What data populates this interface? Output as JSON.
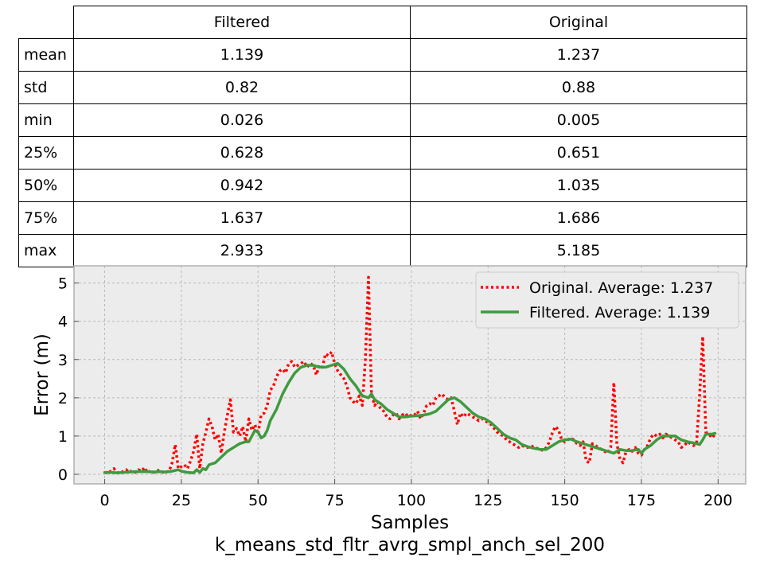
{
  "table": {
    "columns": [
      "Filtered",
      "Original"
    ],
    "rows": [
      {
        "label": "mean",
        "values": [
          "1.139",
          "1.237"
        ]
      },
      {
        "label": "std",
        "values": [
          "0.82",
          "0.88"
        ]
      },
      {
        "label": "min",
        "values": [
          "0.026",
          "0.005"
        ]
      },
      {
        "label": "25%",
        "values": [
          "0.628",
          "0.651"
        ]
      },
      {
        "label": "50%",
        "values": [
          "0.942",
          "1.035"
        ]
      },
      {
        "label": "75%",
        "values": [
          "1.637",
          "1.686"
        ]
      },
      {
        "label": "max",
        "values": [
          "2.933",
          "5.185"
        ]
      }
    ]
  },
  "chart_data": {
    "type": "line",
    "title": "k_means_std_fltr_avrg_smpl_anch_sel_200",
    "xlabel": "Samples",
    "ylabel": "Error (m)",
    "xlim": [
      -10,
      209
    ],
    "ylim": [
      -0.25,
      5.45
    ],
    "xticks": [
      0,
      25,
      50,
      75,
      100,
      125,
      150,
      175,
      200
    ],
    "yticks": [
      0,
      1,
      2,
      3,
      4,
      5
    ],
    "grid": true,
    "legend_position": "top-right",
    "background": "#ececec",
    "series": [
      {
        "name": "Original. Average: 1.237",
        "color": "#ff0000",
        "style": "dotted",
        "points": [
          [
            0,
            0.05
          ],
          [
            1,
            0.03
          ],
          [
            2,
            0.08
          ],
          [
            3,
            0.15
          ],
          [
            4,
            0.06
          ],
          [
            5,
            0.02
          ],
          [
            6,
            0.08
          ],
          [
            7,
            0.12
          ],
          [
            8,
            0.05
          ],
          [
            9,
            0.1
          ],
          [
            10,
            0.05
          ],
          [
            11,
            0.12
          ],
          [
            12,
            0.08
          ],
          [
            13,
            0.18
          ],
          [
            14,
            0.04
          ],
          [
            15,
            0.1
          ],
          [
            16,
            0.05
          ],
          [
            17,
            0.08
          ],
          [
            18,
            0.12
          ],
          [
            19,
            0.05
          ],
          [
            20,
            0.06
          ],
          [
            21,
            0.08
          ],
          [
            22,
            0.3
          ],
          [
            23,
            0.78
          ],
          [
            24,
            0.15
          ],
          [
            25,
            0.2
          ],
          [
            26,
            0.25
          ],
          [
            27,
            0.15
          ],
          [
            28,
            0.35
          ],
          [
            29,
            0.6
          ],
          [
            30,
            1.05
          ],
          [
            31,
            0.15
          ],
          [
            32,
            0.8
          ],
          [
            33,
            1.1
          ],
          [
            34,
            1.45
          ],
          [
            35,
            1.25
          ],
          [
            36,
            0.9
          ],
          [
            37,
            1.05
          ],
          [
            38,
            0.55
          ],
          [
            39,
            1.1
          ],
          [
            40,
            1.55
          ],
          [
            41,
            1.95
          ],
          [
            42,
            1.1
          ],
          [
            43,
            1.2
          ],
          [
            44,
            1.0
          ],
          [
            45,
            1.25
          ],
          [
            46,
            0.85
          ],
          [
            47,
            1.45
          ],
          [
            48,
            1.15
          ],
          [
            49,
            1.3
          ],
          [
            50,
            1.05
          ],
          [
            51,
            1.55
          ],
          [
            52,
            1.6
          ],
          [
            53,
            1.8
          ],
          [
            54,
            2.2
          ],
          [
            55,
            2.3
          ],
          [
            56,
            2.55
          ],
          [
            57,
            2.7
          ],
          [
            58,
            2.75
          ],
          [
            59,
            2.65
          ],
          [
            60,
            2.9
          ],
          [
            61,
            2.95
          ],
          [
            62,
            2.8
          ],
          [
            63,
            2.85
          ],
          [
            64,
            2.9
          ],
          [
            65,
            2.95
          ],
          [
            66,
            2.8
          ],
          [
            67,
            2.9
          ],
          [
            68,
            2.85
          ],
          [
            69,
            2.6
          ],
          [
            70,
            2.85
          ],
          [
            71,
            2.8
          ],
          [
            72,
            3.15
          ],
          [
            73,
            3.1
          ],
          [
            74,
            3.2
          ],
          [
            75,
            2.9
          ],
          [
            76,
            2.7
          ],
          [
            77,
            2.6
          ],
          [
            78,
            2.5
          ],
          [
            79,
            2.3
          ],
          [
            80,
            2.0
          ],
          [
            81,
            1.9
          ],
          [
            82,
            1.85
          ],
          [
            83,
            2.05
          ],
          [
            84,
            1.8
          ],
          [
            85,
            3.0
          ],
          [
            86,
            5.15
          ],
          [
            87,
            2.1
          ],
          [
            88,
            1.8
          ],
          [
            89,
            1.9
          ],
          [
            90,
            1.7
          ],
          [
            91,
            1.65
          ],
          [
            92,
            1.5
          ],
          [
            93,
            1.45
          ],
          [
            94,
            1.55
          ],
          [
            95,
            1.6
          ],
          [
            96,
            1.45
          ],
          [
            97,
            1.55
          ],
          [
            98,
            1.6
          ],
          [
            99,
            1.5
          ],
          [
            100,
            1.55
          ],
          [
            101,
            1.55
          ],
          [
            102,
            1.65
          ],
          [
            103,
            1.45
          ],
          [
            104,
            1.6
          ],
          [
            105,
            1.8
          ],
          [
            106,
            1.85
          ],
          [
            107,
            1.8
          ],
          [
            108,
            2.0
          ],
          [
            109,
            2.05
          ],
          [
            110,
            2.1
          ],
          [
            111,
            2.0
          ],
          [
            112,
            1.95
          ],
          [
            113,
            2.0
          ],
          [
            114,
            1.65
          ],
          [
            115,
            1.3
          ],
          [
            116,
            1.6
          ],
          [
            117,
            1.5
          ],
          [
            118,
            1.6
          ],
          [
            119,
            1.55
          ],
          [
            120,
            1.5
          ],
          [
            121,
            1.45
          ],
          [
            122,
            1.4
          ],
          [
            123,
            1.45
          ],
          [
            124,
            1.4
          ],
          [
            125,
            1.35
          ],
          [
            126,
            1.3
          ],
          [
            127,
            1.2
          ],
          [
            128,
            1.1
          ],
          [
            129,
            1.05
          ],
          [
            130,
            1.0
          ],
          [
            131,
            0.9
          ],
          [
            132,
            0.85
          ],
          [
            133,
            0.8
          ],
          [
            134,
            0.75
          ],
          [
            135,
            0.7
          ],
          [
            136,
            0.75
          ],
          [
            137,
            0.72
          ],
          [
            138,
            0.7
          ],
          [
            139,
            0.75
          ],
          [
            140,
            0.7
          ],
          [
            141,
            0.68
          ],
          [
            142,
            0.65
          ],
          [
            143,
            0.62
          ],
          [
            144,
            0.7
          ],
          [
            145,
            0.85
          ],
          [
            146,
            1.1
          ],
          [
            147,
            1.25
          ],
          [
            148,
            1.15
          ],
          [
            149,
            0.9
          ],
          [
            150,
            0.85
          ],
          [
            151,
            0.9
          ],
          [
            152,
            0.95
          ],
          [
            153,
            0.9
          ],
          [
            154,
            0.8
          ],
          [
            155,
            0.75
          ],
          [
            156,
            0.85
          ],
          [
            157,
            0.35
          ],
          [
            158,
            0.3
          ],
          [
            159,
            0.8
          ],
          [
            160,
            0.75
          ],
          [
            161,
            0.7
          ],
          [
            162,
            0.65
          ],
          [
            163,
            0.6
          ],
          [
            164,
            0.55
          ],
          [
            165,
            0.7
          ],
          [
            166,
            2.4
          ],
          [
            167,
            0.8
          ],
          [
            168,
            0.4
          ],
          [
            169,
            0.3
          ],
          [
            170,
            0.6
          ],
          [
            171,
            0.65
          ],
          [
            172,
            0.6
          ],
          [
            173,
            0.7
          ],
          [
            174,
            0.55
          ],
          [
            175,
            0.5
          ],
          [
            176,
            0.65
          ],
          [
            177,
            0.75
          ],
          [
            178,
            0.95
          ],
          [
            179,
            1.05
          ],
          [
            180,
            1.0
          ],
          [
            181,
            1.05
          ],
          [
            182,
            0.95
          ],
          [
            183,
            1.05
          ],
          [
            184,
            1.0
          ],
          [
            185,
            0.95
          ],
          [
            186,
            0.9
          ],
          [
            187,
            0.85
          ],
          [
            188,
            0.7
          ],
          [
            189,
            0.75
          ],
          [
            190,
            0.85
          ],
          [
            191,
            0.8
          ],
          [
            192,
            0.75
          ],
          [
            193,
            0.8
          ],
          [
            194,
            2.1
          ],
          [
            195,
            3.6
          ],
          [
            196,
            1.1
          ],
          [
            197,
            1.05
          ],
          [
            198,
            0.95
          ],
          [
            199,
            1.05
          ]
        ]
      },
      {
        "name": "Filtered. Average: 1.139",
        "color": "#3f9a3f",
        "style": "solid",
        "points": [
          [
            0,
            0.05
          ],
          [
            2,
            0.05
          ],
          [
            4,
            0.04
          ],
          [
            6,
            0.05
          ],
          [
            8,
            0.06
          ],
          [
            10,
            0.07
          ],
          [
            12,
            0.07
          ],
          [
            14,
            0.07
          ],
          [
            16,
            0.06
          ],
          [
            18,
            0.07
          ],
          [
            20,
            0.06
          ],
          [
            22,
            0.08
          ],
          [
            24,
            0.12
          ],
          [
            25,
            0.08
          ],
          [
            27,
            0.05
          ],
          [
            29,
            0.04
          ],
          [
            30,
            0.12
          ],
          [
            31,
            0.05
          ],
          [
            32,
            0.15
          ],
          [
            33,
            0.12
          ],
          [
            34,
            0.25
          ],
          [
            36,
            0.3
          ],
          [
            38,
            0.45
          ],
          [
            40,
            0.6
          ],
          [
            42,
            0.7
          ],
          [
            44,
            0.8
          ],
          [
            46,
            0.85
          ],
          [
            47,
            0.85
          ],
          [
            48,
            1.0
          ],
          [
            49,
            1.15
          ],
          [
            50,
            1.1
          ],
          [
            51,
            0.95
          ],
          [
            52,
            1.0
          ],
          [
            53,
            1.15
          ],
          [
            54,
            1.4
          ],
          [
            56,
            1.7
          ],
          [
            58,
            2.1
          ],
          [
            60,
            2.4
          ],
          [
            62,
            2.65
          ],
          [
            64,
            2.8
          ],
          [
            66,
            2.85
          ],
          [
            68,
            2.85
          ],
          [
            70,
            2.8
          ],
          [
            72,
            2.8
          ],
          [
            74,
            2.85
          ],
          [
            76,
            2.9
          ],
          [
            78,
            2.75
          ],
          [
            80,
            2.5
          ],
          [
            82,
            2.3
          ],
          [
            84,
            2.05
          ],
          [
            86,
            2.0
          ],
          [
            87,
            2.1
          ],
          [
            88,
            1.95
          ],
          [
            90,
            1.85
          ],
          [
            92,
            1.7
          ],
          [
            94,
            1.6
          ],
          [
            96,
            1.5
          ],
          [
            98,
            1.5
          ],
          [
            100,
            1.52
          ],
          [
            102,
            1.53
          ],
          [
            104,
            1.55
          ],
          [
            106,
            1.58
          ],
          [
            108,
            1.65
          ],
          [
            110,
            1.8
          ],
          [
            112,
            1.95
          ],
          [
            114,
            2.0
          ],
          [
            116,
            1.9
          ],
          [
            118,
            1.75
          ],
          [
            120,
            1.6
          ],
          [
            122,
            1.5
          ],
          [
            124,
            1.45
          ],
          [
            126,
            1.35
          ],
          [
            128,
            1.2
          ],
          [
            130,
            1.05
          ],
          [
            132,
            0.95
          ],
          [
            134,
            0.9
          ],
          [
            136,
            0.78
          ],
          [
            138,
            0.72
          ],
          [
            140,
            0.68
          ],
          [
            142,
            0.65
          ],
          [
            144,
            0.65
          ],
          [
            146,
            0.75
          ],
          [
            148,
            0.85
          ],
          [
            150,
            0.9
          ],
          [
            152,
            0.92
          ],
          [
            154,
            0.85
          ],
          [
            156,
            0.8
          ],
          [
            158,
            0.75
          ],
          [
            160,
            0.7
          ],
          [
            162,
            0.65
          ],
          [
            164,
            0.6
          ],
          [
            166,
            0.55
          ],
          [
            168,
            0.65
          ],
          [
            170,
            0.62
          ],
          [
            172,
            0.62
          ],
          [
            174,
            0.65
          ],
          [
            175,
            0.55
          ],
          [
            176,
            0.65
          ],
          [
            178,
            0.75
          ],
          [
            180,
            0.9
          ],
          [
            182,
            1.0
          ],
          [
            184,
            1.0
          ],
          [
            186,
            1.0
          ],
          [
            188,
            0.9
          ],
          [
            190,
            0.85
          ],
          [
            192,
            0.82
          ],
          [
            194,
            0.78
          ],
          [
            195,
            0.9
          ],
          [
            196,
            1.05
          ],
          [
            198,
            1.05
          ],
          [
            199,
            1.07
          ]
        ]
      }
    ]
  }
}
